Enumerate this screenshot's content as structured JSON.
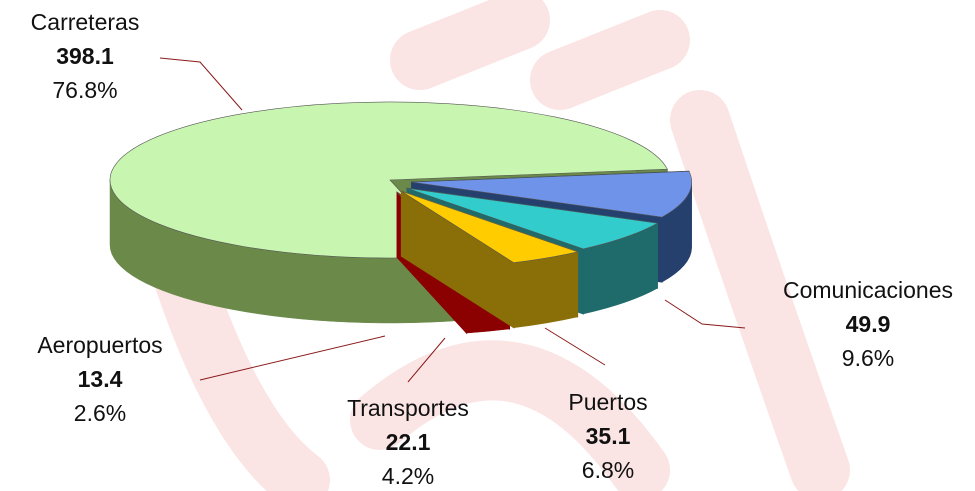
{
  "chart_data": {
    "type": "pie3d",
    "categories": [
      "Carreteras",
      "Comunicaciones",
      "Puertos",
      "Transportes",
      "Aeropuertos"
    ],
    "values": [
      398.1,
      49.9,
      35.1,
      22.1,
      13.4
    ],
    "percent_labels": [
      "76.8%",
      "9.6%",
      "6.8%",
      "4.2%",
      "2.6%"
    ],
    "colors": [
      "#c8f5b0",
      "#6f93e8",
      "#33cccc",
      "#ffcc00",
      "#ff1a1a"
    ],
    "side_colors": [
      "#6b8a4a",
      "#26406e",
      "#1f6b6b",
      "#8a6e08",
      "#8b0000"
    ]
  }
}
